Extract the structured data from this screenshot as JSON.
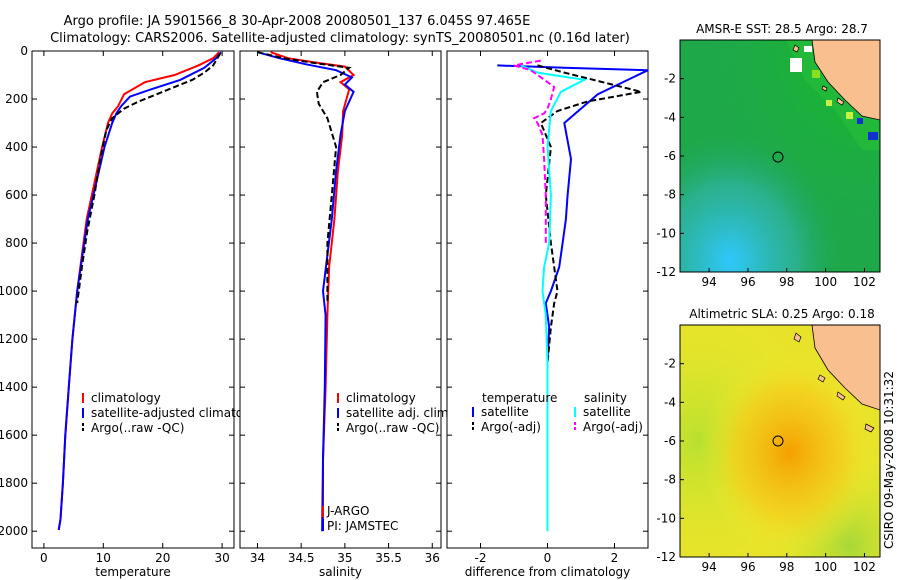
{
  "title": {
    "line1": "Argo profile: JA 5901566_8 30-Apr-2008 20080501_137 6.045S 97.465E",
    "line2": "Climatology: CARS2006. Satellite-adjusted climatology: synTS_20080501.nc (0.16d later)"
  },
  "side_label": "CSIRO 09-May-2008 10:31:32",
  "chart_data": [
    {
      "type": "line",
      "id": "temp",
      "xlabel": "temperature",
      "ylabel": "",
      "xlim": [
        -2,
        32
      ],
      "ylim": [
        2070,
        0
      ],
      "xticks": [
        0,
        10,
        20,
        30
      ],
      "yticks": [
        0,
        200,
        400,
        600,
        800,
        1000,
        1200,
        1400,
        1600,
        1800,
        2000
      ],
      "legend": [
        {
          "label": "climatology",
          "color": "#ff0000"
        },
        {
          "label": "satellite-adjusted climatology",
          "color": "#0000ff"
        },
        {
          "label": "Argo(..raw -QC)",
          "color": "#000000"
        }
      ],
      "series": [
        {
          "name": "climatology",
          "color": "#ff0000",
          "dash": false,
          "x": [
            29.5,
            28.5,
            26,
            22,
            17,
            13.5,
            12.5,
            11.5,
            10.8,
            9.8,
            8.5,
            7.2,
            6.4,
            5.6,
            4.8,
            4.2,
            3.6,
            3.2,
            2.8,
            2.5
          ],
          "y": [
            5,
            30,
            60,
            100,
            130,
            180,
            230,
            260,
            300,
            400,
            550,
            700,
            850,
            1000,
            1200,
            1400,
            1600,
            1800,
            1950,
            1995
          ]
        },
        {
          "name": "satellite-adjusted climatology",
          "color": "#0000ff",
          "dash": false,
          "x": [
            29.8,
            29,
            27,
            23,
            18,
            14.5,
            13,
            12.2,
            11.5,
            10.2,
            8.8,
            7.4,
            6.5,
            5.6,
            4.8,
            4.2,
            3.6,
            3.2,
            2.8,
            2.5
          ],
          "y": [
            5,
            30,
            70,
            120,
            160,
            190,
            230,
            260,
            300,
            400,
            550,
            700,
            850,
            1000,
            1200,
            1400,
            1600,
            1800,
            1950,
            1995
          ]
        },
        {
          "name": "Argo(..raw -QC)",
          "color": "#000000",
          "dash": true,
          "x": [
            29.7,
            29.2,
            28.5,
            27,
            25,
            20,
            16,
            13.5,
            11.5,
            10.5,
            9.5,
            8.5,
            7.3,
            6.4,
            5.6
          ],
          "y": [
            10,
            30,
            60,
            90,
            120,
            170,
            210,
            240,
            280,
            330,
            450,
            600,
            750,
            900,
            1050
          ]
        }
      ]
    },
    {
      "type": "line",
      "id": "sal",
      "xlabel": "salinity",
      "ylabel": "",
      "xlim": [
        33.8,
        36.1
      ],
      "ylim": [
        2070,
        0
      ],
      "xticks": [
        34,
        34.5,
        35,
        35.5,
        36
      ],
      "legend": [
        {
          "label": "climatology",
          "color": "#ff0000"
        },
        {
          "label": "satellite adj. clim.",
          "color": "#0000ff"
        },
        {
          "label": "Argo(..raw -QC)",
          "color": "#000000"
        }
      ],
      "annotations": [
        "J-ARGO",
        "PI: JAMSTEC"
      ],
      "series": [
        {
          "name": "climatology",
          "color": "#ff0000",
          "dash": false,
          "x": [
            34.15,
            34.35,
            34.7,
            35.0,
            35.1,
            34.95,
            35.05,
            34.98,
            34.97,
            34.92,
            34.88,
            34.82,
            34.8,
            34.78,
            34.75,
            34.75
          ],
          "y": [
            5,
            30,
            50,
            65,
            100,
            130,
            160,
            250,
            350,
            500,
            700,
            900,
            1100,
            1400,
            1700,
            1960
          ]
        },
        {
          "name": "satellite adj. clim.",
          "color": "#0000ff",
          "dash": false,
          "x": [
            34.0,
            34.25,
            34.55,
            34.9,
            35.08,
            35.0,
            35.1,
            35.0,
            34.95,
            34.9,
            34.85,
            34.75,
            34.78,
            34.77,
            34.75,
            34.74
          ],
          "y": [
            5,
            30,
            55,
            80,
            110,
            140,
            170,
            250,
            350,
            500,
            700,
            1000,
            1100,
            1400,
            1700,
            2000
          ]
        },
        {
          "name": "Argo(..raw -QC)",
          "color": "#000000",
          "dash": true,
          "x": [
            34.0,
            34.3,
            34.65,
            35.05,
            34.95,
            34.75,
            34.68,
            34.7,
            34.8,
            34.9,
            34.85,
            34.8,
            34.8
          ],
          "y": [
            5,
            30,
            50,
            70,
            100,
            130,
            170,
            220,
            280,
            400,
            600,
            800,
            1050
          ]
        }
      ]
    },
    {
      "type": "line",
      "id": "diff",
      "xlabel": "difference from climatology",
      "ylabel": "",
      "xlim": [
        -3,
        3
      ],
      "ylim": [
        2070,
        0
      ],
      "xticks": [
        -2,
        0,
        2
      ],
      "legend_headers": [
        "temperature",
        "salinity"
      ],
      "legend": [
        {
          "label": "satellite",
          "color": "#0000ff",
          "dash": false
        },
        {
          "label": "Argo(-adj)",
          "color": "#000000",
          "dash": true
        },
        {
          "label": "satellite",
          "color": "#00ffff",
          "dash": false
        },
        {
          "label": "Argo(-adj)",
          "color": "#ff00ff",
          "dash": true
        }
      ],
      "series": [
        {
          "name": "temperature satellite",
          "color": "#0000ff",
          "dash": false,
          "x": [
            -1.5,
            0.5,
            3.0,
            1.5,
            0.5,
            0.7,
            0.6,
            0.55,
            0.45,
            0.35,
            0.1,
            -0.05,
            0.05,
            0.0
          ],
          "y": [
            60,
            70,
            80,
            180,
            300,
            450,
            600,
            700,
            800,
            900,
            1000,
            1050,
            1150,
            1300
          ]
        },
        {
          "name": "temperature Argo(-adj)",
          "color": "#000000",
          "dash": true,
          "x": [
            -0.3,
            0.5,
            2.8,
            1.2,
            0.3,
            -0.2,
            0.1,
            -0.05,
            0.1,
            0.2,
            0.3,
            0.2,
            0.1,
            0.0
          ],
          "y": [
            60,
            90,
            170,
            210,
            250,
            300,
            400,
            600,
            800,
            900,
            1000,
            1050,
            1150,
            1300
          ]
        },
        {
          "name": "salinity satellite",
          "color": "#00ffff",
          "dash": false,
          "x": [
            -0.8,
            -0.3,
            1.1,
            0.4,
            0.1,
            0.0,
            0.1,
            0.05,
            -0.1,
            -0.15,
            -0.05,
            0.0,
            0.0,
            0.0
          ],
          "y": [
            60,
            90,
            120,
            170,
            250,
            400,
            600,
            800,
            900,
            1000,
            1100,
            1300,
            1600,
            2000
          ]
        },
        {
          "name": "salinity Argo(-adj)",
          "color": "#ff00ff",
          "dash": true,
          "x": [
            -0.2,
            -1.0,
            -0.5,
            0.2,
            0.1,
            0.0,
            -0.1,
            -0.4,
            -0.3,
            -0.15,
            -0.1,
            -0.05,
            -0.05
          ],
          "y": [
            40,
            60,
            80,
            150,
            200,
            240,
            260,
            280,
            300,
            350,
            450,
            600,
            800
          ]
        }
      ]
    },
    {
      "type": "heatmap",
      "id": "sst",
      "title": "AMSR-E SST: 28.5 Argo: 28.7",
      "xlim": [
        92.5,
        102.8
      ],
      "ylim": [
        -12,
        0
      ],
      "xticks": [
        94,
        96,
        98,
        100,
        102
      ],
      "yticks": [
        -2,
        -4,
        -6,
        -8,
        -10,
        -12
      ],
      "argo_position": {
        "lon": 97.465,
        "lat": -6.045
      }
    },
    {
      "type": "heatmap",
      "id": "sla",
      "title": "Altimetric SLA: 0.25 Argo: 0.18",
      "xlim": [
        92.5,
        102.8
      ],
      "ylim": [
        -12,
        0
      ],
      "xticks": [
        94,
        96,
        98,
        100,
        102
      ],
      "yticks": [
        -2,
        -4,
        -6,
        -8,
        -10,
        -12
      ],
      "argo_position": {
        "lon": 97.465,
        "lat": -6.045
      }
    }
  ]
}
